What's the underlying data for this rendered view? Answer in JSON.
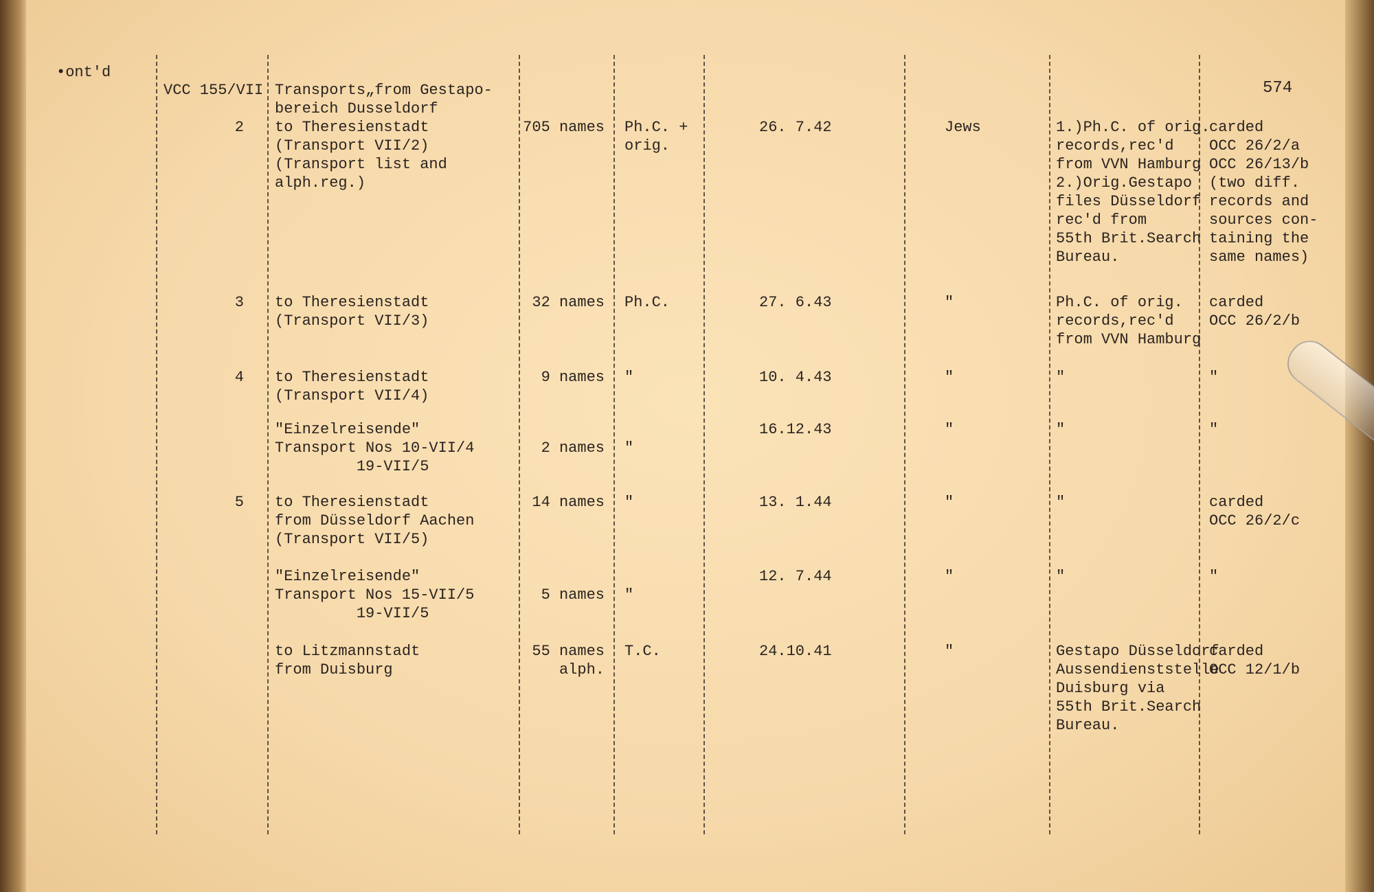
{
  "header": {
    "cont": "•ont'd",
    "page_number": "574"
  },
  "ref": "VCC 155/VII",
  "rows": [
    {
      "num": "2",
      "desc": [
        "Transports„from Gestapo-",
        "bereich Dusseldorf",
        "to Theresienstadt",
        "(Transport VII/2)",
        "(Transport list and",
        "alph.reg.)"
      ],
      "names": [
        "705 names"
      ],
      "source": [
        "Ph.C. +",
        "orig."
      ],
      "date": "26. 7.42",
      "category": "Jews",
      "origin": [
        "1.)Ph.C. of orig.",
        "records,rec'd",
        "from VVN Hamburg",
        "2.)Orig.Gestapo",
        "files Düsseldorf",
        "rec'd from",
        "55th Brit.Search",
        "Bureau."
      ],
      "remarks": [
        "carded",
        "OCC 26/2/a",
        "OCC 26/13/b",
        "(two diff.",
        "records and",
        "sources con-",
        "taining the",
        "same names)"
      ]
    },
    {
      "num": "3",
      "desc": [
        "to Theresienstadt",
        "(Transport VII/3)"
      ],
      "names": [
        "32 names"
      ],
      "source": [
        "Ph.C."
      ],
      "date": "27. 6.43",
      "category": "\"",
      "origin": [
        "Ph.C. of orig.",
        "records,rec'd",
        "from VVN Hamburg"
      ],
      "remarks": [
        "carded",
        "OCC 26/2/b"
      ]
    },
    {
      "num": "4",
      "desc": [
        "to Theresienstadt",
        "(Transport VII/4)"
      ],
      "names": [
        "9 names"
      ],
      "source": [
        "\""
      ],
      "date": "10. 4.43",
      "category": "\"",
      "origin": [
        "\""
      ],
      "remarks": [
        "\""
      ]
    },
    {
      "num": "",
      "desc": [
        "\"Einzelreisende\"",
        "Transport Nos 10-VII/4",
        "         19-VII/5"
      ],
      "names": [
        "",
        "2 names"
      ],
      "source": [
        "",
        "\""
      ],
      "date": "16.12.43",
      "category": "\"",
      "origin": [
        "\""
      ],
      "remarks": [
        "\""
      ]
    },
    {
      "num": "5",
      "desc": [
        "to Theresienstadt",
        "from Düsseldorf Aachen",
        "(Transport VII/5)"
      ],
      "names": [
        "14 names"
      ],
      "source": [
        "\""
      ],
      "date": "13. 1.44",
      "category": "\"",
      "origin": [
        "\""
      ],
      "remarks": [
        "carded",
        "OCC 26/2/c"
      ]
    },
    {
      "num": "",
      "desc": [
        "\"Einzelreisende\"",
        "Transport Nos 15-VII/5",
        "         19-VII/5"
      ],
      "names": [
        "",
        "5 names"
      ],
      "source": [
        "",
        "\""
      ],
      "date": "12. 7.44",
      "category": "\"",
      "origin": [
        "\""
      ],
      "remarks": [
        "\""
      ]
    },
    {
      "num": "",
      "desc": [
        "to Litzmannstadt",
        "from Duisburg"
      ],
      "names": [
        "55 names",
        "alph."
      ],
      "source": [
        "T.C."
      ],
      "date": "24.10.41",
      "category": "\"",
      "origin": [
        "Gestapo Düsseldorf",
        "Aussendienststelle",
        "Duisburg via",
        "55th Brit.Search",
        "Bureau."
      ],
      "remarks": [
        "carded",
        "OCC 12/1/b"
      ]
    }
  ]
}
